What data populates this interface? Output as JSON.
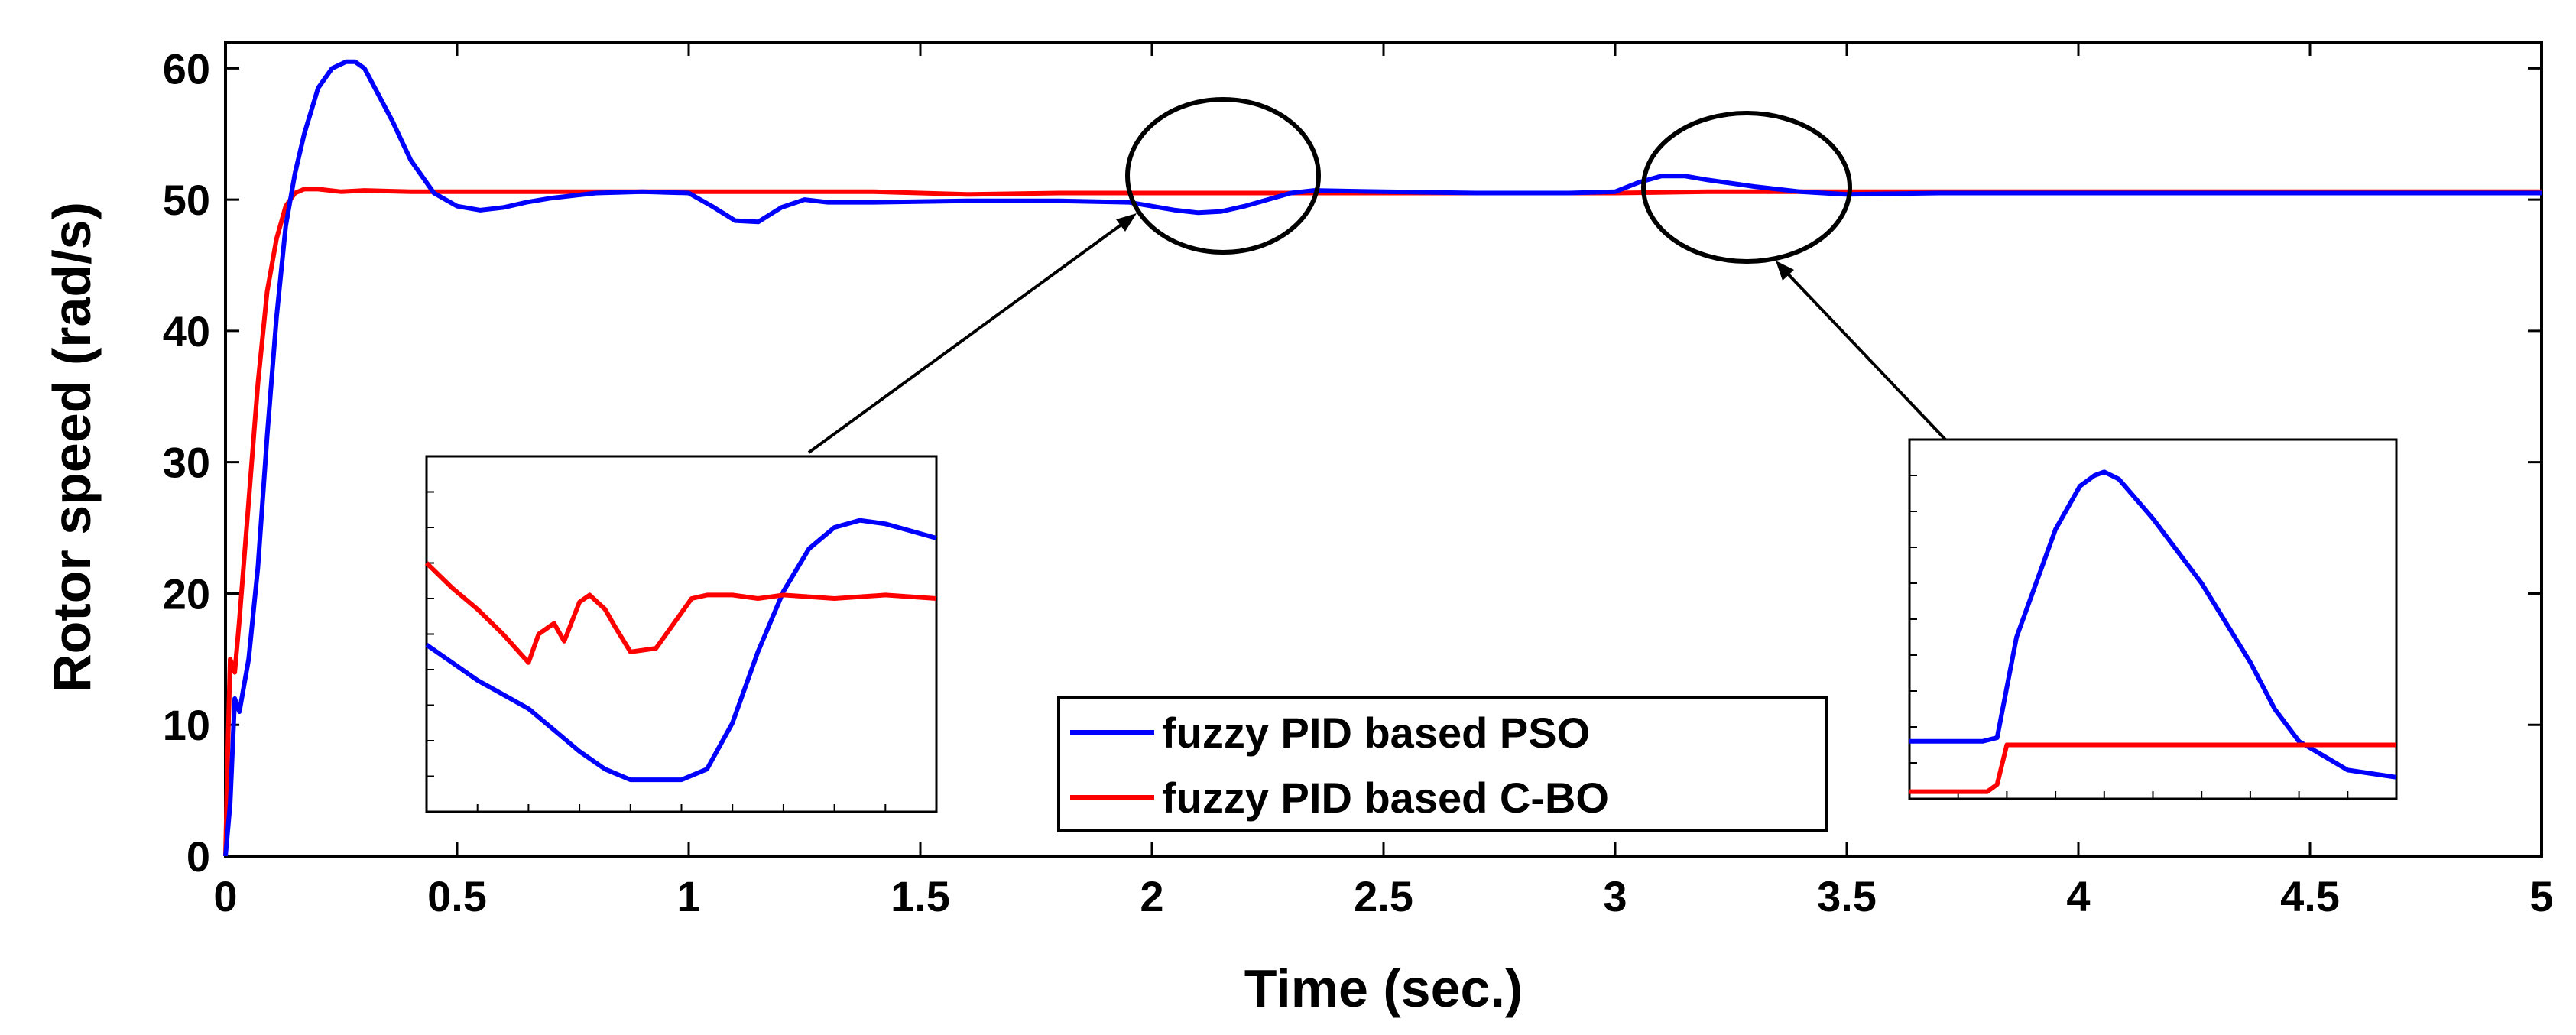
{
  "colors": {
    "pso": "#0000ff",
    "cbo": "#ff0000",
    "axis": "#000000",
    "background": "#ffffff"
  },
  "chart_data": {
    "type": "line",
    "title": "",
    "xlabel": "Time (sec.)",
    "ylabel": "Rotor speed (rad/s)",
    "xlim": [
      0,
      5
    ],
    "ylim": [
      0,
      62
    ],
    "xticks": [
      0,
      0.5,
      1,
      1.5,
      2,
      2.5,
      3,
      3.5,
      4,
      4.5,
      5
    ],
    "xtick_labels": [
      "0",
      "0.5",
      "1",
      "1.5",
      "2",
      "2.5",
      "3",
      "3.5",
      "4",
      "4.5",
      "5"
    ],
    "yticks": [
      0,
      10,
      20,
      30,
      40,
      50,
      60
    ],
    "ytick_labels": [
      "0",
      "10",
      "20",
      "30",
      "40",
      "50",
      "60"
    ],
    "grid": false,
    "legend_position": "bottom-center",
    "series": [
      {
        "name": "fuzzy PID based PSO",
        "color": "#0000ff",
        "x": [
          0,
          0.01,
          0.02,
          0.03,
          0.05,
          0.07,
          0.09,
          0.11,
          0.13,
          0.15,
          0.17,
          0.2,
          0.23,
          0.26,
          0.28,
          0.3,
          0.33,
          0.36,
          0.4,
          0.45,
          0.5,
          0.55,
          0.6,
          0.65,
          0.7,
          0.8,
          0.9,
          1.0,
          1.05,
          1.1,
          1.15,
          1.2,
          1.25,
          1.3,
          1.4,
          1.6,
          1.8,
          1.95,
          2.0,
          2.05,
          2.1,
          2.15,
          2.2,
          2.25,
          2.3,
          2.35,
          2.5,
          2.7,
          2.9,
          3.0,
          3.05,
          3.1,
          3.15,
          3.2,
          3.3,
          3.4,
          3.5,
          3.7,
          4.0,
          4.5,
          5.0
        ],
        "y": [
          0,
          4,
          12,
          11,
          15,
          22,
          32,
          41,
          48,
          52,
          55,
          58.5,
          60,
          60.5,
          60.5,
          60,
          58,
          56,
          53,
          50.5,
          49.5,
          49.2,
          49.4,
          49.8,
          50.1,
          50.5,
          50.6,
          50.5,
          49.5,
          48.4,
          48.3,
          49.4,
          50,
          49.8,
          49.8,
          49.9,
          49.9,
          49.8,
          49.5,
          49.2,
          49,
          49.1,
          49.5,
          50,
          50.5,
          50.7,
          50.6,
          50.5,
          50.5,
          50.6,
          51.3,
          51.8,
          51.8,
          51.5,
          51,
          50.6,
          50.4,
          50.5,
          50.5,
          50.5,
          50.5
        ]
      },
      {
        "name": "fuzzy PID based C-BO",
        "color": "#ff0000",
        "x": [
          0,
          0.005,
          0.01,
          0.02,
          0.03,
          0.05,
          0.07,
          0.09,
          0.11,
          0.13,
          0.15,
          0.17,
          0.2,
          0.25,
          0.3,
          0.4,
          0.5,
          0.6,
          0.8,
          1.0,
          1.2,
          1.4,
          1.6,
          1.8,
          2.0,
          2.2,
          2.4,
          2.6,
          2.8,
          3.0,
          3.2,
          3.4,
          3.6,
          4.0,
          4.5,
          5.0
        ],
        "y": [
          0,
          8,
          15,
          14,
          18,
          27,
          36,
          43,
          47,
          49.5,
          50.5,
          50.8,
          50.8,
          50.6,
          50.7,
          50.6,
          50.6,
          50.6,
          50.6,
          50.6,
          50.6,
          50.6,
          50.4,
          50.5,
          50.5,
          50.5,
          50.5,
          50.5,
          50.5,
          50.5,
          50.6,
          50.6,
          50.6,
          50.6,
          50.6,
          50.6
        ]
      }
    ],
    "insets": [
      {
        "name": "zoom-near-2.1s",
        "series": [
          {
            "name": "fuzzy PID based PSO",
            "color": "#0000ff",
            "x": [
              0,
              0.05,
              0.1,
              0.15,
              0.2,
              0.25,
              0.3,
              0.35,
              0.4,
              0.45,
              0.5,
              0.55,
              0.6,
              0.65,
              0.7,
              0.75,
              0.8,
              0.85,
              0.9,
              0.95,
              1.0
            ],
            "y": [
              0.47,
              0.42,
              0.37,
              0.33,
              0.29,
              0.23,
              0.17,
              0.12,
              0.09,
              0.09,
              0.09,
              0.12,
              0.25,
              0.45,
              0.62,
              0.74,
              0.8,
              0.82,
              0.81,
              0.79,
              0.77
            ]
          },
          {
            "name": "fuzzy PID based C-BO",
            "color": "#ff0000",
            "x": [
              0,
              0.05,
              0.1,
              0.15,
              0.2,
              0.22,
              0.25,
              0.27,
              0.3,
              0.32,
              0.35,
              0.37,
              0.4,
              0.45,
              0.5,
              0.52,
              0.55,
              0.6,
              0.65,
              0.7,
              0.8,
              0.9,
              1.0
            ],
            "y": [
              0.7,
              0.63,
              0.57,
              0.5,
              0.42,
              0.5,
              0.53,
              0.48,
              0.59,
              0.61,
              0.57,
              0.52,
              0.45,
              0.46,
              0.56,
              0.6,
              0.61,
              0.61,
              0.6,
              0.61,
              0.6,
              0.61,
              0.6
            ]
          }
        ]
      },
      {
        "name": "zoom-near-3.15s",
        "series": [
          {
            "name": "fuzzy PID based PSO",
            "color": "#0000ff",
            "x": [
              0,
              0.1,
              0.15,
              0.18,
              0.22,
              0.3,
              0.35,
              0.38,
              0.4,
              0.43,
              0.5,
              0.6,
              0.7,
              0.75,
              0.8,
              0.9,
              1.0
            ],
            "y": [
              0.16,
              0.16,
              0.16,
              0.17,
              0.45,
              0.75,
              0.87,
              0.9,
              0.91,
              0.89,
              0.78,
              0.6,
              0.38,
              0.25,
              0.16,
              0.08,
              0.06
            ]
          },
          {
            "name": "fuzzy PID based C-BO",
            "color": "#ff0000",
            "x": [
              0,
              0.16,
              0.18,
              0.2,
              0.25,
              0.5,
              1.0
            ],
            "y": [
              0.02,
              0.02,
              0.04,
              0.15,
              0.15,
              0.15,
              0.15
            ]
          }
        ]
      }
    ]
  }
}
